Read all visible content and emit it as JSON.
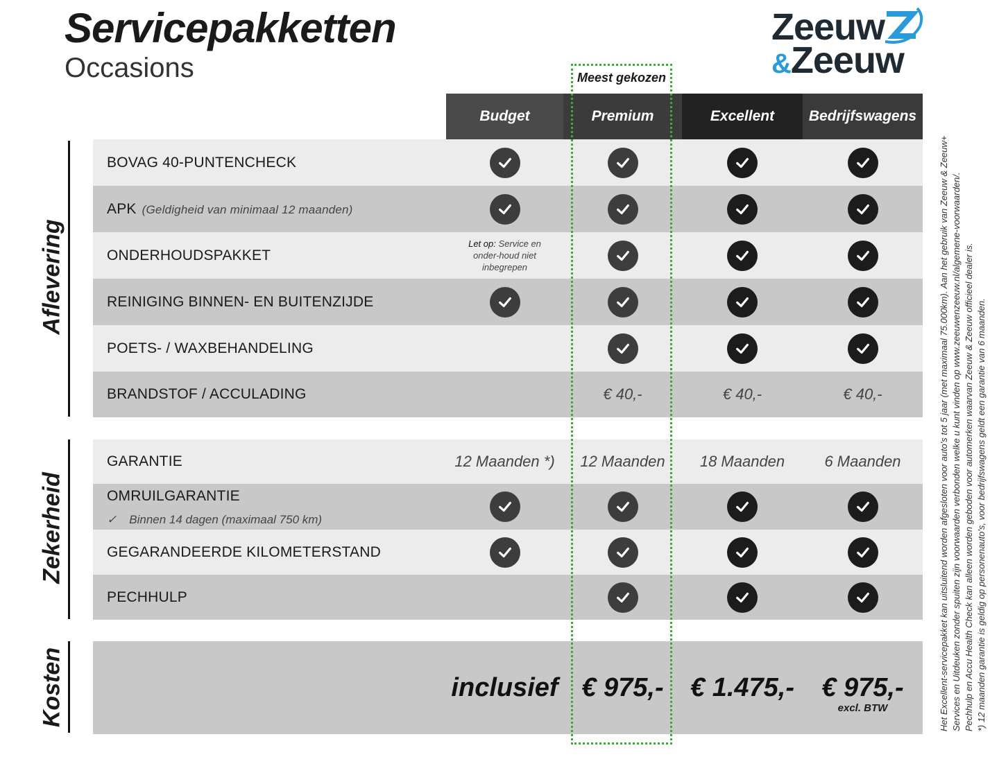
{
  "header": {
    "title": "Servicepakketten",
    "subtitle": "Occasions",
    "logo_text": [
      "Zeeuw",
      "&",
      "Zeeuw"
    ]
  },
  "most_chosen": "Meest gekozen",
  "columns": [
    "Budget",
    "Premium",
    "Excellent",
    "Bedrijfswagens"
  ],
  "colors": {
    "budget": "#4a4a4a",
    "premium": "#3b3b3b",
    "excellent": "#222222",
    "bedrijf": "#3a3a3a",
    "highlight": "#3aaa3a",
    "logo_blue": "#2a9ad8"
  },
  "sections": [
    {
      "label": "Aflevering",
      "rows": [
        {
          "label": "BOVAG 40-PUNTENCHECK",
          "cells": [
            "check",
            "check",
            "check",
            "check"
          ]
        },
        {
          "label": "APK",
          "sub": "(Geldigheid van minimaal 12 maanden)",
          "cells": [
            "check",
            "check",
            "check",
            "check"
          ]
        },
        {
          "label": "ONDERHOUDSPAKKET",
          "note_bold": "Let op:",
          "note": "Service en onder-houd niet inbegrepen",
          "cells": [
            "note",
            "check",
            "check",
            "check"
          ]
        },
        {
          "label": "REINIGING BINNEN- EN BUITENZIJDE",
          "cells": [
            "check",
            "check",
            "check",
            "check"
          ]
        },
        {
          "label": "POETS- / WAXBEHANDELING",
          "cells": [
            "",
            "check",
            "check",
            "check"
          ]
        },
        {
          "label": "BRANDSTOF / ACCULADING",
          "cells": [
            "",
            "€ 40,-",
            "€ 40,-",
            "€ 40,-"
          ]
        }
      ]
    },
    {
      "label": "Zekerheid",
      "rows": [
        {
          "label": "GARANTIE",
          "cells": [
            "12 Maanden *)",
            "12 Maanden",
            "18 Maanden",
            "6 Maanden"
          ]
        },
        {
          "label": "OMRUILGARANTIE",
          "sub2": "Binnen 14 dagen (maximaal 750 km)",
          "cells": [
            "check",
            "check",
            "check",
            "check"
          ]
        },
        {
          "label": "GEGARANDEERDE KILOMETERSTAND",
          "cells": [
            "check",
            "check",
            "check",
            "check"
          ]
        },
        {
          "label": "PECHHULP",
          "cells": [
            "",
            "check",
            "check",
            "check"
          ]
        }
      ]
    },
    {
      "label": "Kosten",
      "prices": [
        "inclusief",
        "€ 975,-",
        "€ 1.475,-",
        "€ 975,-"
      ],
      "price_note": "excl. BTW"
    }
  ],
  "footnotes": [
    "Het Excellent-servicepakket kan uitsluitend worden afgesloten voor auto's tot 5 jaar (met maximaal 75.000km). Aan het gebruik van Zeeuw & Zeeuw+",
    "Services en Uitdeuken zonder spuiten zijn voorwaarden verbonden welke u kunt vinden op www.zeeuwenzeeuw.nl/algemene-voorwaarden/.",
    "Pechhulp en Accu Health Check kan alleen worden geboden voor automerken waarvan Zeeuw & Zeeuw officieel dealer is.",
    "*) 12 maanden garantie is geldig op personenauto's, voor bedrijfswagens geldt een garantie van 6 maanden."
  ]
}
